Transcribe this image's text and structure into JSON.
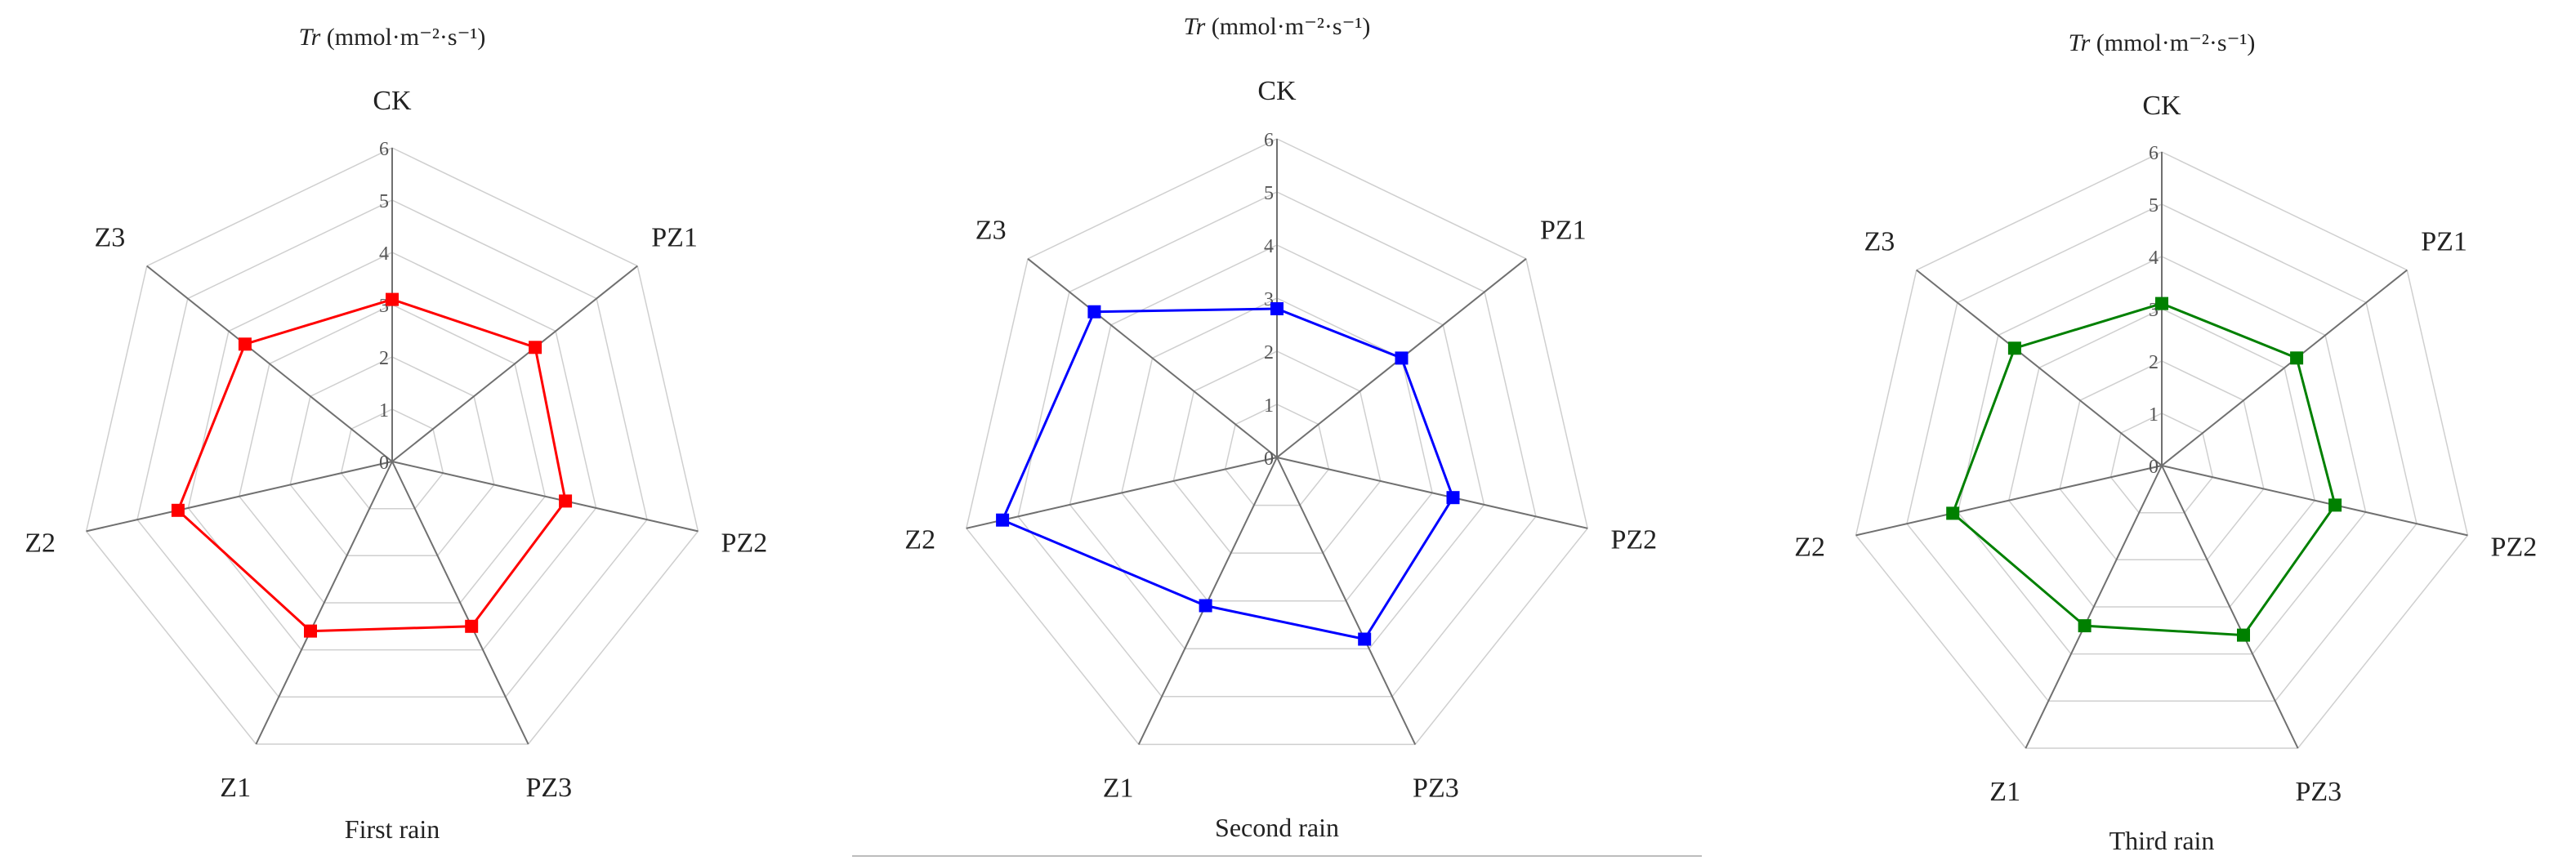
{
  "figure": {
    "unit_label": "(mmol·m⁻²·s⁻¹)",
    "variable_label": "Tr"
  },
  "chart_data": [
    {
      "type": "radar",
      "caption": "First rain",
      "categories": [
        "CK",
        "PZ1",
        "PZ2",
        "PZ3",
        "Z1",
        "Z2",
        "Z3"
      ],
      "range": [
        0,
        6
      ],
      "ticks": [
        0,
        1,
        2,
        3,
        4,
        5,
        6
      ],
      "grid": true,
      "color": "#ff0000",
      "values": [
        3.1,
        3.5,
        3.4,
        3.5,
        3.6,
        4.2,
        3.6
      ]
    },
    {
      "type": "radar",
      "caption": "Second rain",
      "categories": [
        "CK",
        "PZ1",
        "PZ2",
        "PZ3",
        "Z1",
        "Z2",
        "Z3"
      ],
      "range": [
        0,
        6
      ],
      "ticks": [
        0,
        1,
        2,
        3,
        4,
        5,
        6
      ],
      "grid": true,
      "color": "#0000ff",
      "values": [
        2.8,
        3.0,
        3.4,
        3.8,
        3.1,
        5.3,
        4.4
      ]
    },
    {
      "type": "radar",
      "caption": "Third rain",
      "categories": [
        "CK",
        "PZ1",
        "PZ2",
        "PZ3",
        "Z1",
        "Z2",
        "Z3"
      ],
      "range": [
        0,
        6
      ],
      "ticks": [
        0,
        1,
        2,
        3,
        4,
        5,
        6
      ],
      "grid": true,
      "color": "#008000",
      "values": [
        3.1,
        3.3,
        3.4,
        3.6,
        3.4,
        4.1,
        3.6
      ]
    }
  ]
}
